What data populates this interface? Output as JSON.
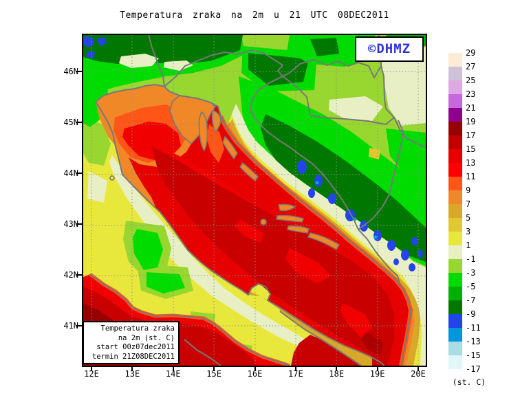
{
  "title": "Temperatura zraka na 2m u 21 UTC 08DEC2011",
  "logo": {
    "text": "©DHMZ",
    "color": "#2f36e0"
  },
  "info_box": {
    "lines": [
      "Temperatura zraka",
      "na 2m (st. C)",
      "start 00z07dec2011",
      "termin 21Z08DEC2011"
    ]
  },
  "axes": {
    "lat_labels": [
      "46N",
      "45N",
      "44N",
      "43N",
      "42N",
      "41N"
    ],
    "lon_labels": [
      "12E",
      "13E",
      "14E",
      "15E",
      "16E",
      "17E",
      "18E",
      "19E",
      "20E"
    ]
  },
  "legend": {
    "unit": "(st. C)",
    "labels": [
      "29",
      "27",
      "25",
      "23",
      "21",
      "19",
      "17",
      "15",
      "13",
      "11",
      "9",
      "7",
      "5",
      "3",
      "1",
      "-1",
      "-3",
      "-5",
      "-7",
      "-9",
      "-11",
      "-13",
      "-15",
      "-17"
    ],
    "colors": [
      "#fcebd5",
      "#cfc1d7",
      "#dca9e0",
      "#c767dc",
      "#90008c",
      "#980000",
      "#c00000",
      "#e60000",
      "#ff0000",
      "#ff5517",
      "#f08828",
      "#d8a828",
      "#e0c830",
      "#e8e83c",
      "#e9efc4",
      "#98d630",
      "#00dc00",
      "#00b000",
      "#007800",
      "#2244e8",
      "#0096dc",
      "#aadce6",
      "#e0f6f8"
    ]
  },
  "chart_data": {
    "type": "heatmap",
    "title": "Temperatura zraka na 2m u 21 UTC 08DEC2011",
    "variable": "air temperature at 2 m",
    "unit": "st. C (degrees Celsius)",
    "valid_time": "21 UTC 08DEC2011",
    "model_start": "00z07dec2011",
    "model_termin": "21Z08DEC2011",
    "region": "Adriatic Sea, Croatia, Italy, Bosnia, Slovenia, Montenegro",
    "xlabel_ticks": [
      "12E",
      "13E",
      "14E",
      "15E",
      "16E",
      "17E",
      "18E",
      "19E",
      "20E"
    ],
    "ylabel_ticks": [
      "46N",
      "45N",
      "44N",
      "43N",
      "42N",
      "41N"
    ],
    "lon_range_deg_e": [
      12,
      20
    ],
    "lat_range_deg_n": [
      41,
      46
    ],
    "contour_interval_deg_c": 2,
    "levels_deg_c": [
      29,
      27,
      25,
      23,
      21,
      19,
      17,
      15,
      13,
      11,
      9,
      7,
      5,
      3,
      1,
      -1,
      -3,
      -5,
      -7,
      -9,
      -11,
      -13,
      -15,
      -17
    ],
    "palette_colors": [
      "#fcebd5",
      "#cfc1d7",
      "#dca9e0",
      "#c767dc",
      "#90008c",
      "#980000",
      "#c00000",
      "#e60000",
      "#ff0000",
      "#ff5517",
      "#f08828",
      "#d8a828",
      "#e0c830",
      "#e8e83c",
      "#e9efc4",
      "#98d630",
      "#00dc00",
      "#00b000",
      "#007800",
      "#2244e8",
      "#0096dc",
      "#aadce6",
      "#e0f6f8"
    ],
    "grid": "dotted gray graticule every 1 degree",
    "legend_position": "right",
    "field_summary": [
      {
        "area": "open Adriatic Sea (central and south)",
        "approx_temp_c": "15 to 17"
      },
      {
        "area": "NW Adriatic / Gulf of Venice",
        "approx_temp_c": "7 to 13"
      },
      {
        "area": "Tyrrhenian Sea, bottom-left corner",
        "approx_temp_c": "15 to 19"
      },
      {
        "area": "Croatian coastal fringe and islands",
        "approx_temp_c": "5 to 11"
      },
      {
        "area": "Italian peninsula interior",
        "approx_temp_c": "-1 to 5"
      },
      {
        "area": "Pannonian lowlands (N and NE Croatia)",
        "approx_temp_c": "-3 to 1"
      },
      {
        "area": "Dinaric mountains (Bosnia, Lika)",
        "approx_temp_c": "-9 to -5"
      },
      {
        "area": "coldest mountain pockets (blue spots)",
        "approx_temp_c": "-13 to -9"
      }
    ]
  }
}
